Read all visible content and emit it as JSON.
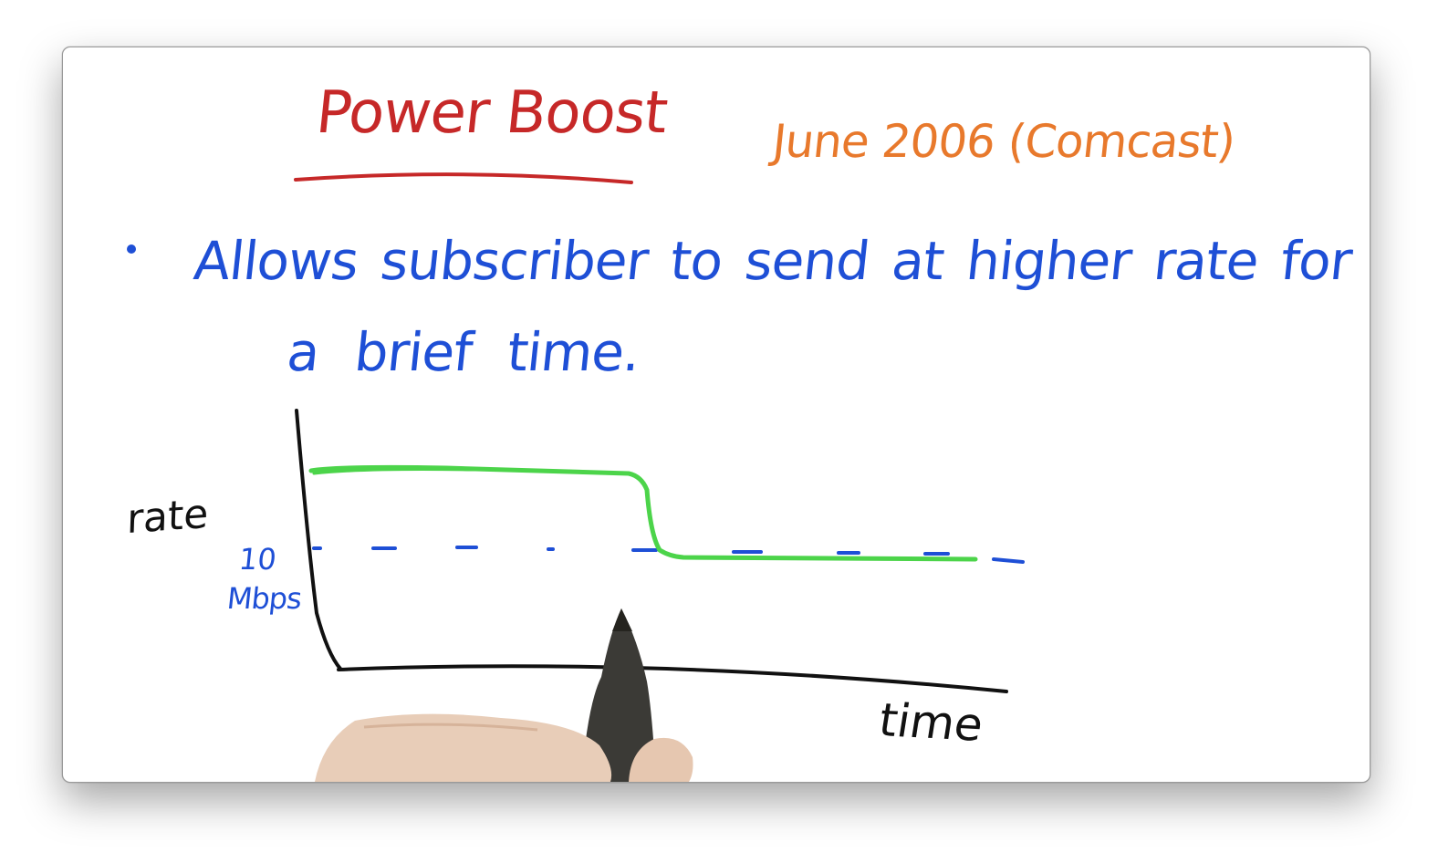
{
  "title": "Power Boost",
  "date_note": "June 2006 (Comcast)",
  "bullet": {
    "line1": "Allows subscriber to send at higher rate for",
    "line2": "a brief time."
  },
  "axes": {
    "ylabel": "rate",
    "xlabel": "time"
  },
  "threshold": {
    "value": "10",
    "unit": "Mbps"
  },
  "colors": {
    "title": "#c62828",
    "date_note": "#e8792c",
    "bullet_text": "#1e4fd6",
    "axes": "#111111",
    "threshold_line": "#1e4fd6",
    "rate_curve": "#4cd44a"
  },
  "icons": [
    "marker-icon",
    "hand-icon"
  ]
}
